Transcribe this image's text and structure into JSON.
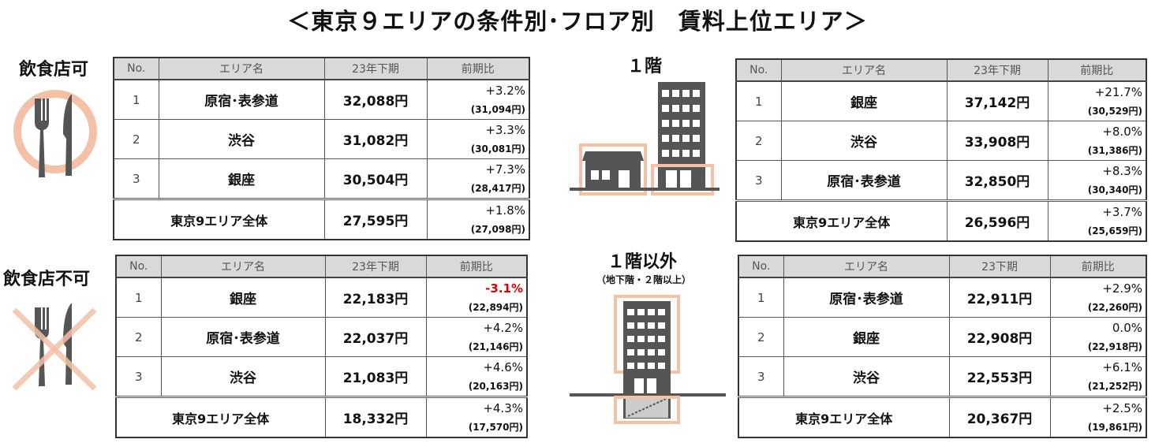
{
  "title": "＜東京９エリアの条件別･フロア別　賃料上位エリア＞",
  "labels": {
    "food_ok": "飲食店可",
    "food_ng": "飲食店不可",
    "floor1": "１階",
    "floor_other": "１階以外",
    "floor_other_sub": "（地下階・２階以上）"
  },
  "colors": {
    "accent": "#f4c1a6",
    "icon": "#555555"
  },
  "tables": [
    {
      "headers": [
        "No.",
        "エリア名",
        "23年下期",
        "前期比"
      ],
      "rows": [
        {
          "no": "1",
          "area": "原宿･表参道",
          "value": "32,088円",
          "pct": "+3.2%",
          "prev": "(31,094円)"
        },
        {
          "no": "2",
          "area": "渋谷",
          "value": "31,082円",
          "pct": "+3.3%",
          "prev": "(30,081円)"
        },
        {
          "no": "3",
          "area": "銀座",
          "value": "30,504円",
          "pct": "+7.3%",
          "prev": "(28,417円)"
        }
      ],
      "total": {
        "area": "東京9エリア全体",
        "value": "27,595円",
        "pct": "+1.8%",
        "prev": "(27,098円)"
      }
    },
    {
      "headers": [
        "No.",
        "エリア名",
        "23年下期",
        "前期比"
      ],
      "rows": [
        {
          "no": "1",
          "area": "銀座",
          "value": "22,183円",
          "pct": "-3.1%",
          "prev": "(22,894円)",
          "negative": true
        },
        {
          "no": "2",
          "area": "原宿･表参道",
          "value": "22,037円",
          "pct": "+4.2%",
          "prev": "(21,146円)"
        },
        {
          "no": "3",
          "area": "渋谷",
          "value": "21,083円",
          "pct": "+4.6%",
          "prev": "(20,163円)"
        }
      ],
      "total": {
        "area": "東京9エリア全体",
        "value": "18,332円",
        "pct": "+4.3%",
        "prev": "(17,570円)"
      }
    },
    {
      "headers": [
        "No.",
        "エリア名",
        "23年下期",
        "前期比"
      ],
      "rows": [
        {
          "no": "1",
          "area": "銀座",
          "value": "37,142円",
          "pct": "+21.7%",
          "prev": "(30,529円)"
        },
        {
          "no": "2",
          "area": "渋谷",
          "value": "33,908円",
          "pct": "+8.0%",
          "prev": "(31,386円)"
        },
        {
          "no": "3",
          "area": "原宿･表参道",
          "value": "32,850円",
          "pct": "+8.3%",
          "prev": "(30,340円)"
        }
      ],
      "total": {
        "area": "東京9エリア全体",
        "value": "26,596円",
        "pct": "+3.7%",
        "prev": "(25,659円)"
      }
    },
    {
      "headers": [
        "No.",
        "エリア名",
        "23下期",
        "前期比"
      ],
      "rows": [
        {
          "no": "1",
          "area": "原宿･表参道",
          "value": "22,911円",
          "pct": "+2.9%",
          "prev": "(22,260円)"
        },
        {
          "no": "2",
          "area": "銀座",
          "value": "22,908円",
          "pct": "0.0%",
          "prev": "(22,918円)"
        },
        {
          "no": "3",
          "area": "渋谷",
          "value": "22,553円",
          "pct": "+6.1%",
          "prev": "(21,252円)"
        }
      ],
      "total": {
        "area": "東京9エリア全体",
        "value": "20,367円",
        "pct": "+2.5%",
        "prev": "(19,861円)"
      }
    }
  ]
}
